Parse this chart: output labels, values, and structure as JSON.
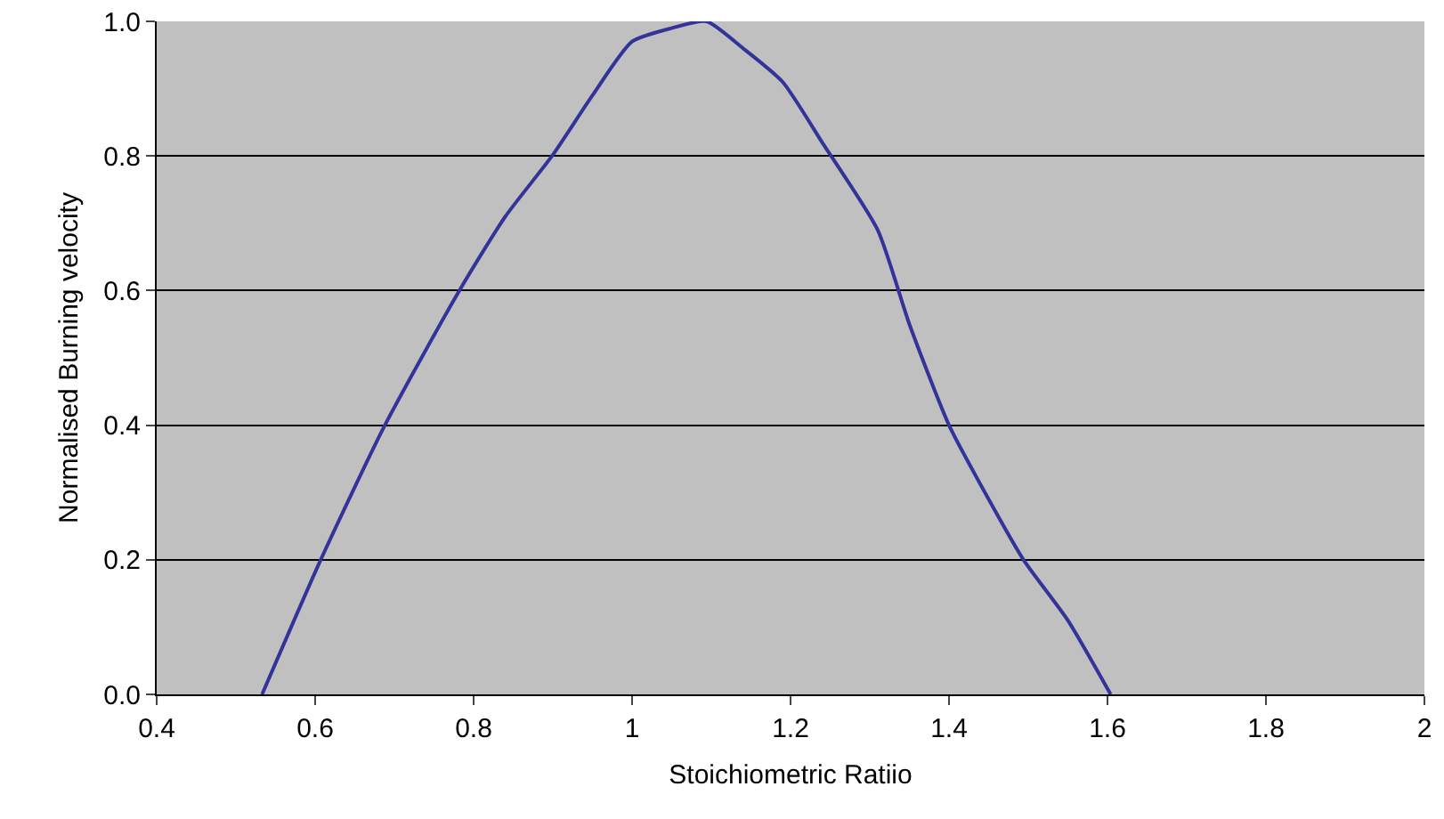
{
  "chart_data": {
    "type": "line",
    "xlabel": "Stoichiometric Ratiio",
    "ylabel": "Normalised Burning velocity",
    "x": [
      0.533,
      0.607,
      0.688,
      0.782,
      0.84,
      0.899,
      0.95,
      1.0,
      1.05,
      1.094,
      1.14,
      1.19,
      1.24,
      1.31,
      1.35,
      1.4,
      1.45,
      1.494,
      1.55,
      1.604
    ],
    "series": [
      {
        "color": "#333399",
        "values": [
          0,
          0.2,
          0.4,
          0.6,
          0.71,
          0.8,
          0.89,
          0.97,
          0.99,
          1.0,
          0.96,
          0.91,
          0.82,
          0.69,
          0.55,
          0.4,
          0.29,
          0.2,
          0.11,
          0
        ]
      }
    ],
    "xlim": [
      0.4,
      2
    ],
    "xticks": [
      0.4,
      0.6,
      0.8,
      1,
      1.2,
      1.4,
      1.6,
      1.8,
      2
    ],
    "ylim": [
      0,
      1
    ],
    "yticks": [
      {
        "value": 0,
        "label": "0.0"
      },
      {
        "value": 0.2,
        "label": "0.2"
      },
      {
        "value": 0.4,
        "label": "0.4"
      },
      {
        "value": 0.6,
        "label": "0.6"
      },
      {
        "value": 0.8,
        "label": "0.8"
      },
      {
        "value": 1,
        "label": "1.0"
      }
    ],
    "grid": "y",
    "marker": "none",
    "line_style": "solid"
  }
}
